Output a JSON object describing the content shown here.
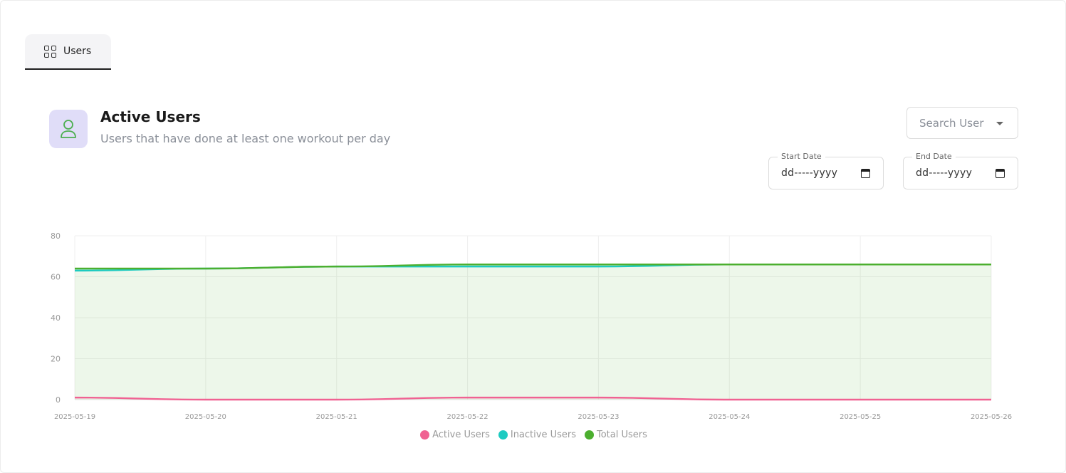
{
  "tabs": [
    {
      "label": "Users",
      "icon": "grid-icon"
    }
  ],
  "header": {
    "title": "Active Users",
    "subtitle": "Users that have done at least one workout per day",
    "icon": "user-icon"
  },
  "search": {
    "placeholder": "Search User"
  },
  "start_date": {
    "label": "Start Date",
    "value": "dd-----yyyy"
  },
  "end_date": {
    "label": "End Date",
    "value": "dd-----yyyy"
  },
  "colors": {
    "active": "#f06292",
    "inactive": "#1ecbc1",
    "total": "#4caf2f",
    "avatar_bg": "#e0ddf8",
    "icon_green": "#4caf50"
  },
  "chart_data": {
    "type": "line",
    "categories": [
      "2025-05-19",
      "2025-05-20",
      "2025-05-21",
      "2025-05-22",
      "2025-05-23",
      "2025-05-24",
      "2025-05-25",
      "2025-05-26"
    ],
    "ylim": [
      0,
      80
    ],
    "yticks": [
      0,
      20,
      40,
      60,
      80
    ],
    "grid": true,
    "legend_position": "bottom",
    "series": [
      {
        "name": "Active Users",
        "color": "#f06292",
        "values": [
          1,
          0,
          0,
          1,
          1,
          0,
          0,
          0
        ]
      },
      {
        "name": "Inactive Users",
        "color": "#1ecbc1",
        "values": [
          63,
          64,
          65,
          65,
          65,
          66,
          66,
          66
        ]
      },
      {
        "name": "Total Users",
        "color": "#4caf2f",
        "values": [
          64,
          64,
          65,
          66,
          66,
          66,
          66,
          66
        ],
        "fill": true
      }
    ]
  }
}
